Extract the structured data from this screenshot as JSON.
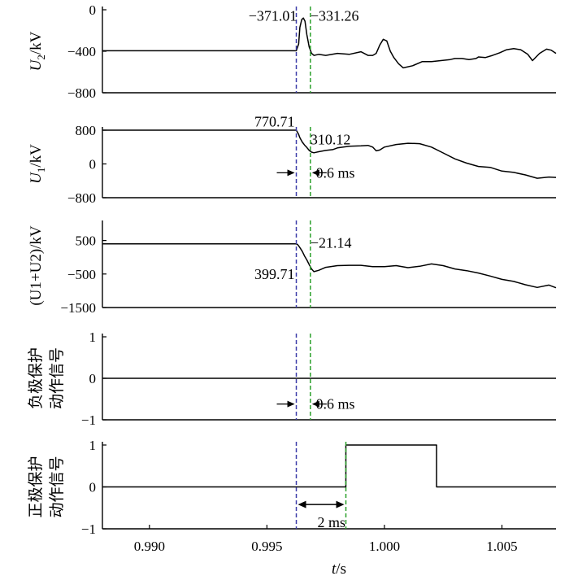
{
  "chart_data": [
    {
      "type": "line",
      "id": "u2",
      "ylabel_main": "U",
      "ylabel_sub": "2",
      "ylabel_unit": "/kV",
      "ylim": [
        -800,
        0
      ],
      "yticks": [
        0,
        -400,
        -800
      ],
      "ytick_labels": [
        "0",
        "−400",
        "−800"
      ],
      "xlim": [
        0.988,
        1.0073
      ],
      "series": [
        {
          "name": "U2",
          "x": [
            0.988,
            0.99625,
            0.99635,
            0.9964,
            0.99648,
            0.99655,
            0.99662,
            0.9967,
            0.9968,
            0.9969,
            0.997,
            0.9972,
            0.9975,
            0.998,
            0.9985,
            0.999,
            0.9993,
            0.9995,
            0.99965,
            0.9998,
            0.99995,
            1.0001,
            1.00025,
            1.0004,
            1.0006,
            1.0008,
            1.0012,
            1.0016,
            1.002,
            1.0024,
            1.0028,
            1.003,
            1.0033,
            1.0036,
            1.0039,
            1.004,
            1.0043,
            1.0046,
            1.0049,
            1.0052,
            1.0055,
            1.0058,
            1.0061,
            1.0063,
            1.0066,
            1.0069,
            1.0071,
            1.0073
          ],
          "y": [
            -395,
            -395,
            -330,
            -170,
            -95,
            -80,
            -110,
            -240,
            -360,
            -420,
            -440,
            -430,
            -440,
            -420,
            -430,
            -405,
            -440,
            -440,
            -420,
            -340,
            -285,
            -300,
            -400,
            -460,
            -520,
            -560,
            -540,
            -500,
            -500,
            -490,
            -480,
            -470,
            -470,
            -480,
            -470,
            -455,
            -460,
            -440,
            -415,
            -385,
            -375,
            -385,
            -430,
            -490,
            -420,
            -380,
            -390,
            -420
          ]
        }
      ],
      "annotations": [
        {
          "text": "−371.01",
          "x": 0.99628,
          "y": -60,
          "anchor": "end"
        },
        {
          "text": "−331.26",
          "x": 0.99685,
          "y": -60,
          "anchor": "start"
        }
      ]
    },
    {
      "type": "line",
      "id": "u1",
      "ylabel_main": "U",
      "ylabel_sub": "1",
      "ylabel_unit": "/kV",
      "ylim": [
        -800,
        800
      ],
      "yticks": [
        800,
        0,
        -800
      ],
      "ytick_labels": [
        "800",
        "0",
        "−800"
      ],
      "xlim": [
        0.988,
        1.0073
      ],
      "series": [
        {
          "name": "U1",
          "x": [
            0.988,
            0.99625,
            0.9963,
            0.99635,
            0.9964,
            0.9965,
            0.9966,
            0.9967,
            0.9968,
            0.9969,
            0.997,
            0.9972,
            0.9975,
            0.9978,
            0.998,
            0.9985,
            0.999,
            0.9993,
            0.9995,
            0.99965,
            0.9998,
            1.0,
            1.0005,
            1.001,
            1.0015,
            1.002,
            1.0025,
            1.003,
            1.0035,
            1.004,
            1.0045,
            1.005,
            1.0055,
            1.006,
            1.0065,
            1.007,
            1.0073
          ],
          "y": [
            800,
            800,
            750,
            700,
            620,
            520,
            450,
            390,
            320,
            280,
            265,
            290,
            320,
            340,
            380,
            420,
            430,
            440,
            400,
            310,
            330,
            400,
            460,
            490,
            480,
            400,
            260,
            120,
            20,
            -60,
            -80,
            -170,
            -200,
            -260,
            -340,
            -310,
            -320
          ]
        }
      ],
      "annotations": [
        {
          "text": "770.71",
          "x": 0.99618,
          "y": 1000,
          "anchor": "end"
        },
        {
          "text": "310.12",
          "x": 0.99685,
          "y": 580,
          "anchor": "start"
        },
        {
          "text": "0.6 ms",
          "x": 0.99708,
          "y": -210,
          "anchor": "start"
        }
      ]
    },
    {
      "type": "line",
      "id": "u1u2",
      "ylabel_text": "(U1+U2)/kV",
      "ylim": [
        -1500,
        1000
      ],
      "yticks": [
        500,
        -500,
        -1500
      ],
      "ytick_labels": [
        "500",
        "−500",
        "−1500"
      ],
      "xlim": [
        0.988,
        1.0073
      ],
      "series": [
        {
          "name": "U1+U2",
          "x": [
            0.988,
            0.99625,
            0.9963,
            0.99635,
            0.9964,
            0.9965,
            0.9966,
            0.9967,
            0.9968,
            0.9969,
            0.997,
            0.9972,
            0.9975,
            0.998,
            0.9985,
            0.999,
            0.9995,
            1.0,
            1.0005,
            1.001,
            1.0015,
            1.002,
            1.0025,
            1.003,
            1.0035,
            1.004,
            1.0045,
            1.005,
            1.0055,
            1.006,
            1.0065,
            1.007,
            1.0073
          ],
          "y": [
            400,
            400,
            380,
            340,
            290,
            180,
            40,
            -80,
            -220,
            -350,
            -430,
            -390,
            -300,
            -250,
            -240,
            -240,
            -280,
            -280,
            -250,
            -310,
            -270,
            -200,
            -250,
            -350,
            -400,
            -470,
            -560,
            -660,
            -720,
            -820,
            -900,
            -830,
            -910
          ]
        }
      ],
      "annotations": [
        {
          "text": "−21.14",
          "x": 0.99685,
          "y": 430,
          "anchor": "start"
        },
        {
          "text": "399.71",
          "x": 0.99618,
          "y": -500,
          "anchor": "end"
        }
      ]
    },
    {
      "type": "line",
      "id": "neg",
      "ylabel_lines": [
        "负极保护",
        "动作信号"
      ],
      "ylim": [
        -1,
        1
      ],
      "yticks": [
        1,
        0,
        -1
      ],
      "ytick_labels": [
        "1",
        "0",
        "−1"
      ],
      "xlim": [
        0.988,
        1.0073
      ],
      "series": [
        {
          "name": "负极保护动作信号",
          "x": [
            0.988,
            1.0073
          ],
          "y": [
            0,
            0
          ]
        }
      ],
      "annotations": [
        {
          "text": "0.6 ms",
          "x": 0.99708,
          "y": -0.62,
          "anchor": "start"
        }
      ]
    },
    {
      "type": "line",
      "id": "pos",
      "ylabel_lines": [
        "正极保护",
        "动作信号"
      ],
      "ylim": [
        -1,
        1
      ],
      "yticks": [
        1,
        0,
        -1
      ],
      "ytick_labels": [
        "1",
        "0",
        "−1"
      ],
      "xlim": [
        0.988,
        1.0073
      ],
      "xticks": [
        0.99,
        0.995,
        1.0,
        1.005
      ],
      "xtick_labels": [
        "0.990",
        "0.995",
        "1.000",
        "1.005"
      ],
      "xlabel_main": "t",
      "xlabel_unit": "/s",
      "series": [
        {
          "name": "正极保护动作信号",
          "x": [
            0.988,
            0.99836,
            0.99836,
            1.00222,
            1.00222,
            1.0073
          ],
          "y": [
            0,
            0,
            1,
            1,
            0,
            0
          ]
        }
      ],
      "annotations": [
        {
          "text": "2 ms",
          "x": 0.99715,
          "y": -0.84,
          "anchor": "start"
        }
      ]
    }
  ],
  "markers": {
    "fault_time": 0.99625,
    "detect_time": 0.99685,
    "trip_time": 0.99836,
    "blue_color": "#3a3aa8",
    "green_color": "#2aa02a",
    "line_color": "#000000"
  }
}
